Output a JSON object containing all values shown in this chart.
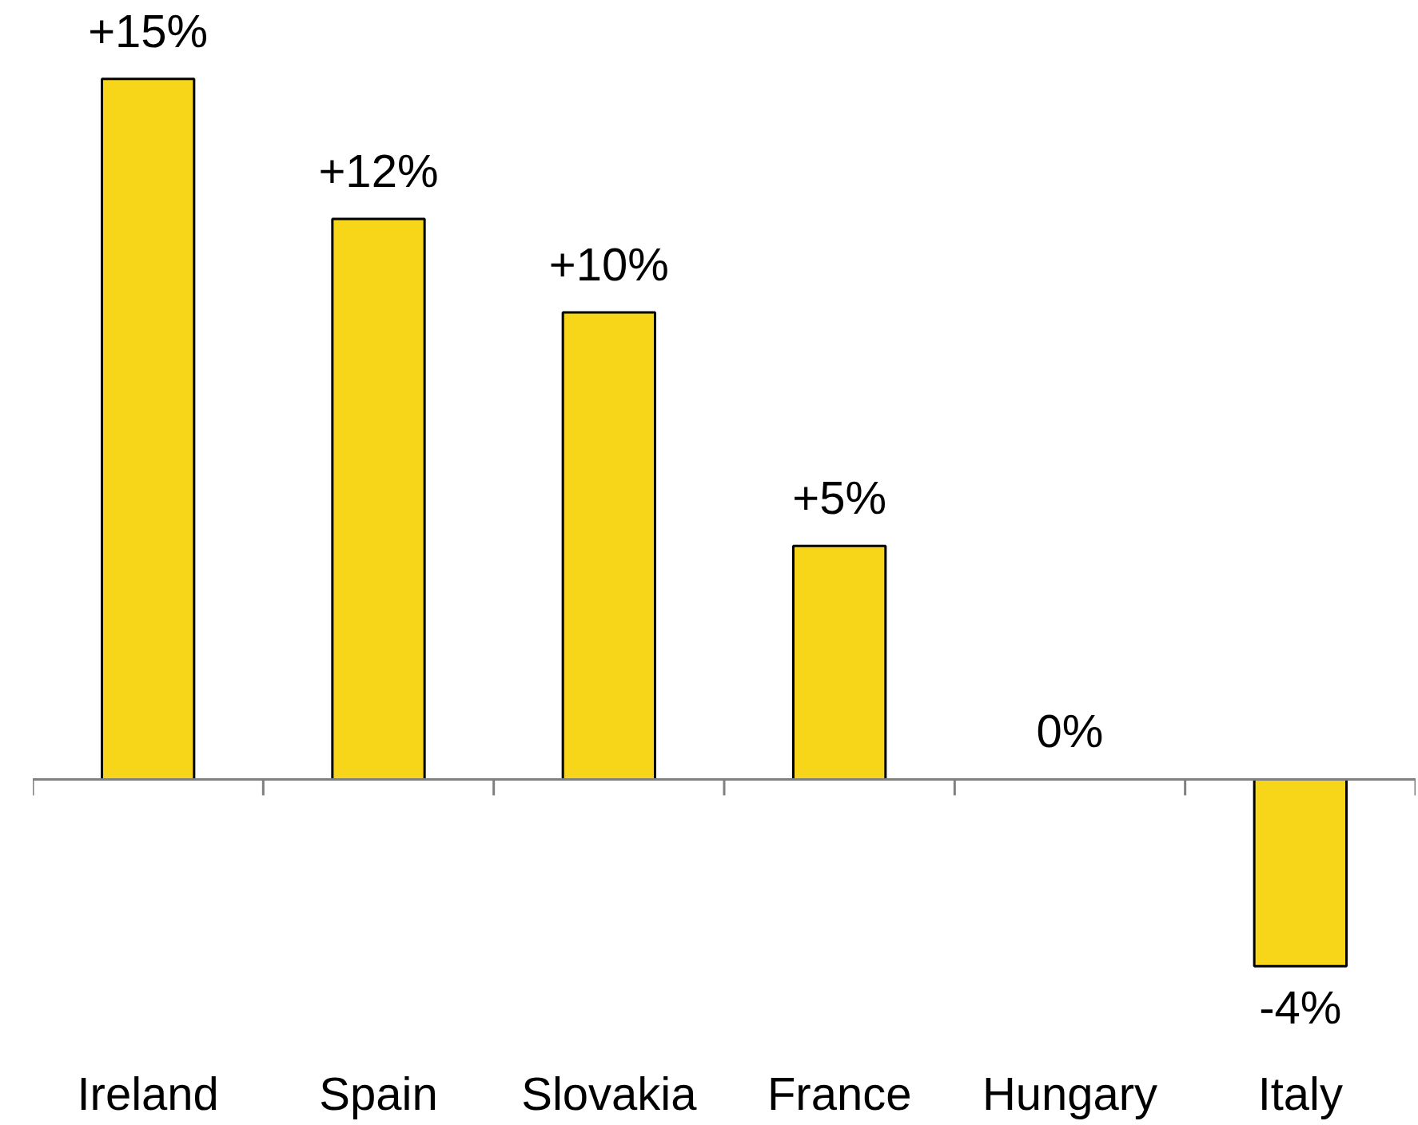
{
  "chart_data": {
    "type": "bar",
    "categories": [
      "Ireland",
      "Spain",
      "Slovakia",
      "France",
      "Hungary",
      "Italy"
    ],
    "values": [
      15,
      12,
      10,
      5,
      0,
      -4
    ],
    "value_labels": [
      "+15%",
      "+12%",
      "+10%",
      "+5%",
      "0%",
      "-4%"
    ],
    "color": "#f7d619"
  }
}
